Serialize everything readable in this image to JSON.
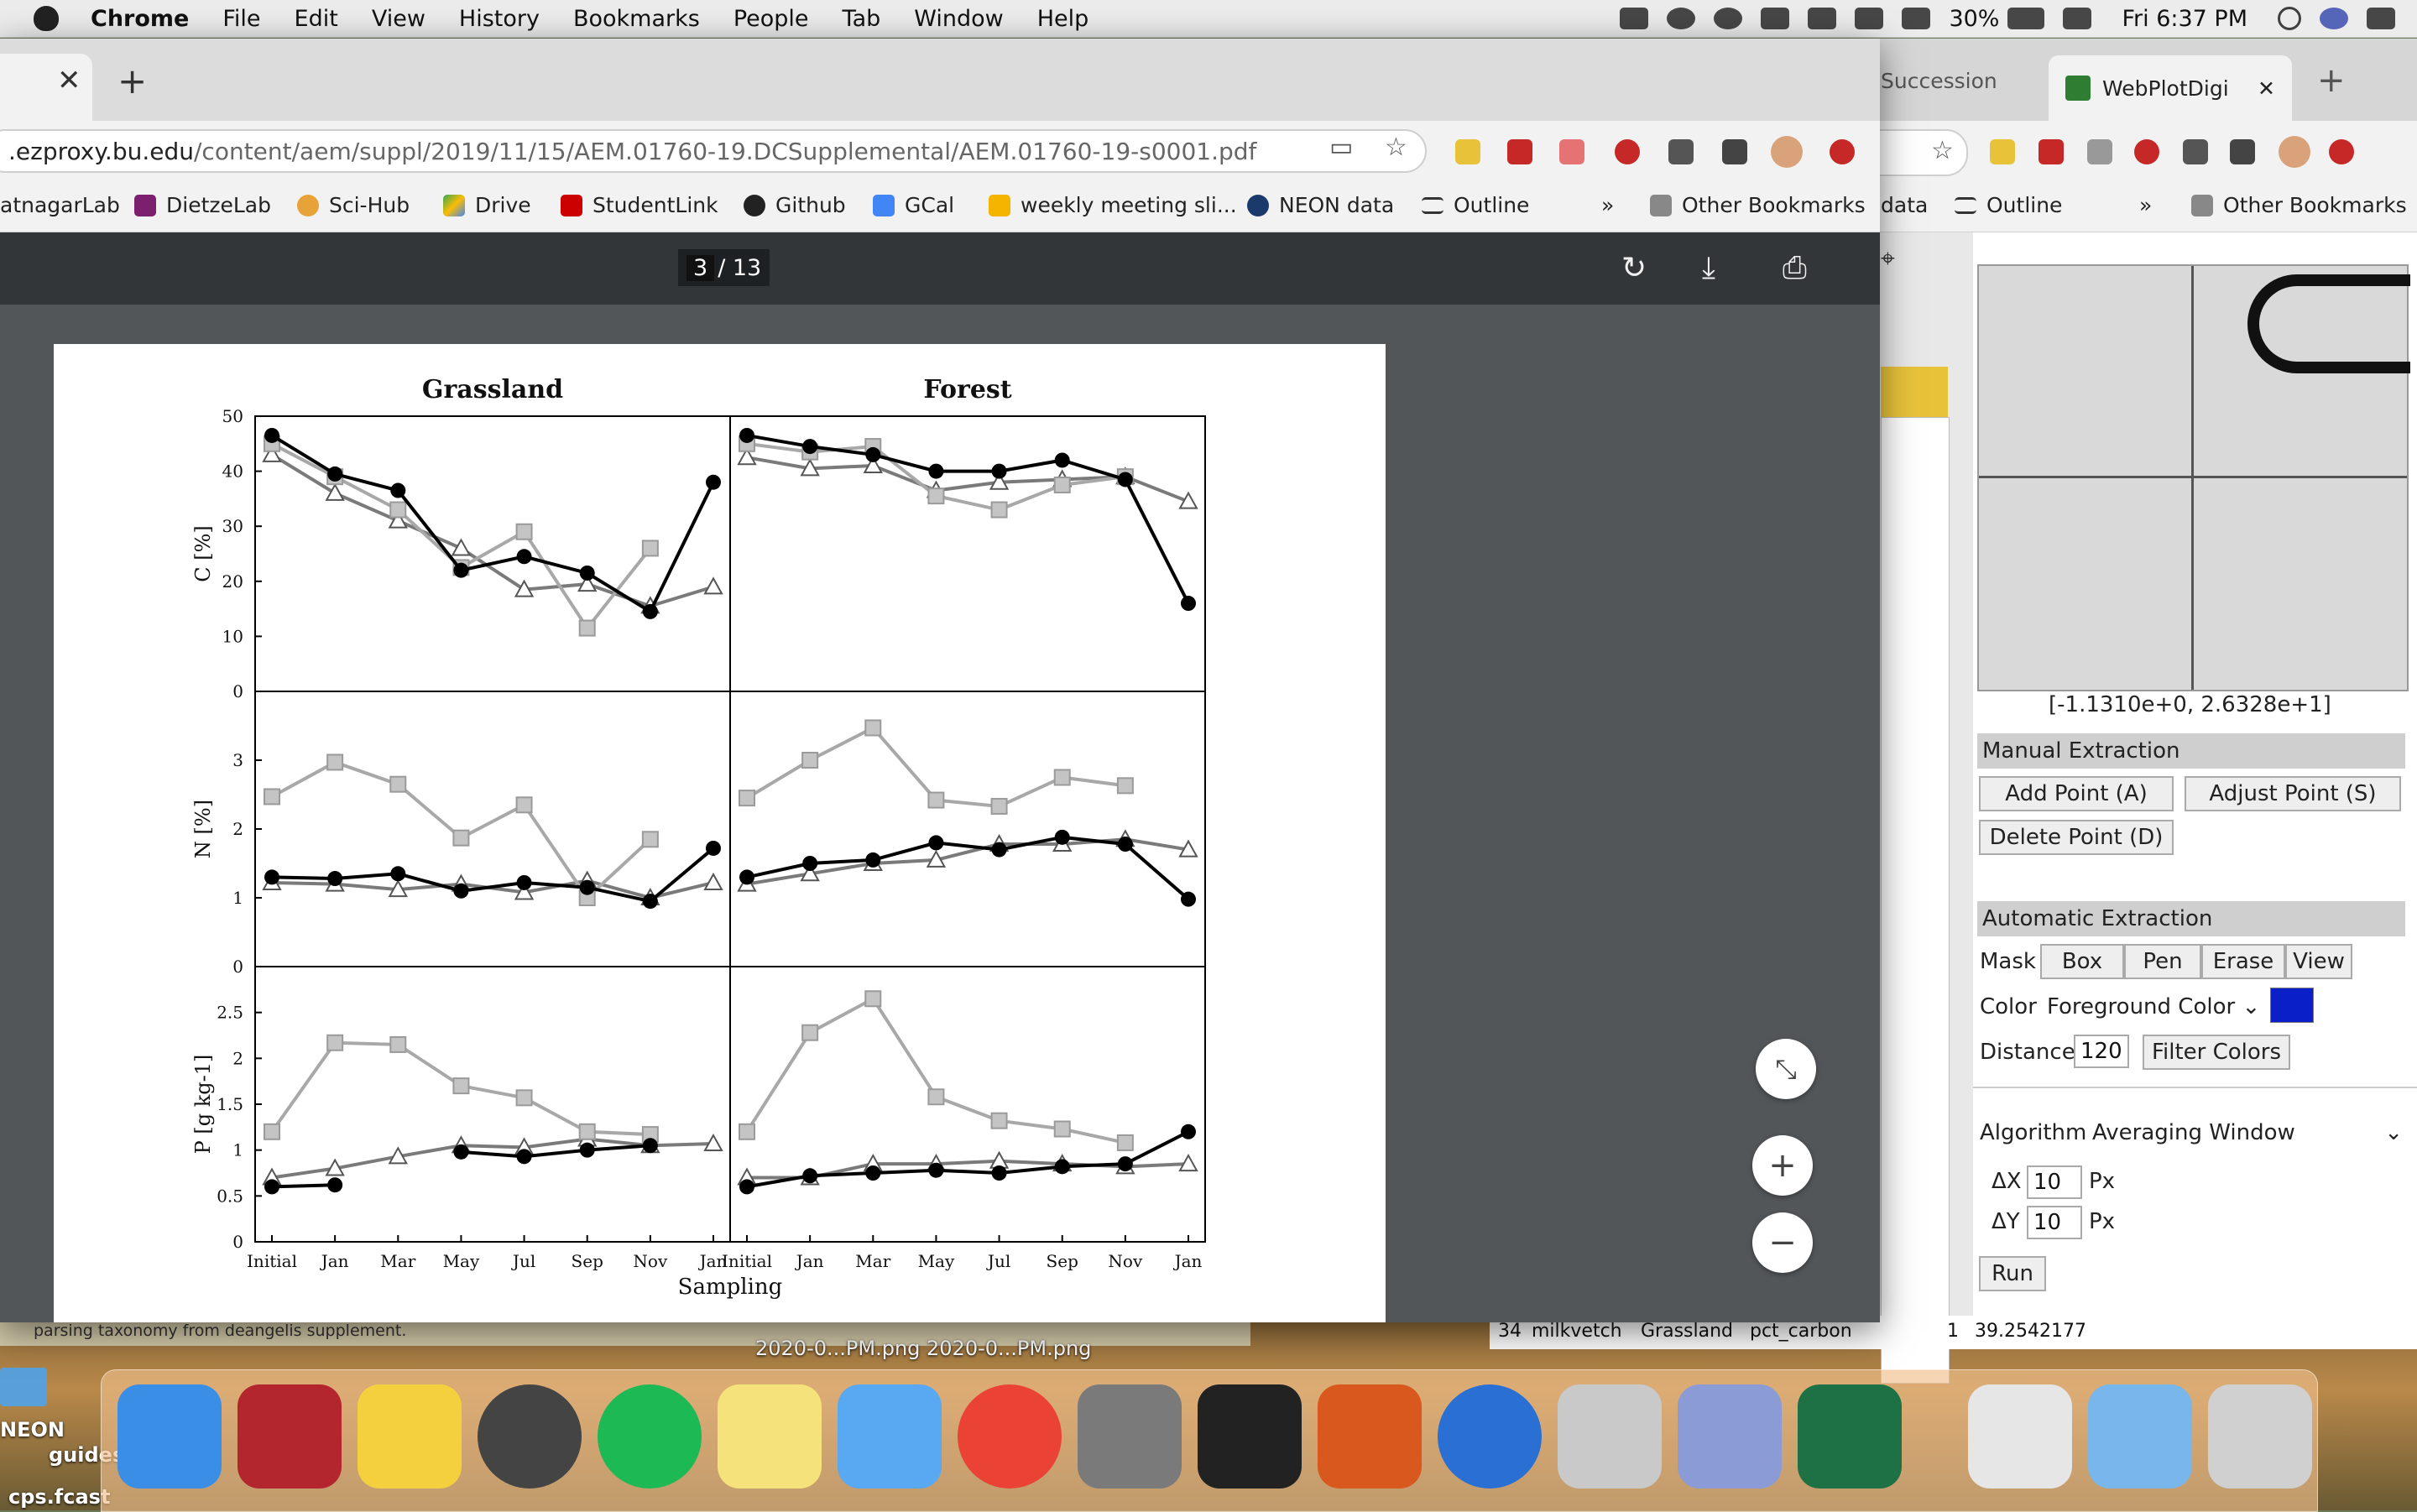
{
  "menubar": {
    "app": "Chrome",
    "items": [
      "File",
      "Edit",
      "View",
      "History",
      "Bookmarks",
      "People",
      "Tab",
      "Window",
      "Help"
    ],
    "battery": "30%",
    "clock": "Fri 6:37 PM"
  },
  "chrome": {
    "url_host": ".ezproxy.bu.edu",
    "url_path": "/content/aem/suppl/2019/11/15/AEM.01760-19.DCSupplemental/AEM.01760-19-s0001.pdf",
    "bookmarks": [
      "atnagarLab",
      "DietzeLab",
      "Sci-Hub",
      "Drive",
      "StudentLink",
      "Github",
      "GCal",
      "weekly meeting sli...",
      "NEON data",
      "Outline",
      "»",
      "Other Bookmarks"
    ],
    "pdf_page": "3",
    "pdf_pages_total": "/ 13"
  },
  "wpd": {
    "tab_left": "Succession",
    "tab_title": "WebPlotDigi",
    "bookmarks": [
      "data",
      "Outline",
      "»",
      "Other Bookmarks"
    ],
    "coords": "[-1.1310e+0, 2.6328e+1]",
    "manual_extraction": "Manual Extraction",
    "add_point": "Add Point (A)",
    "adjust_point": "Adjust Point (S)",
    "delete_point": "Delete Point (D)",
    "automatic_extraction": "Automatic Extraction",
    "mask_label": "Mask",
    "mask_box": "Box",
    "mask_pen": "Pen",
    "mask_erase": "Erase",
    "mask_view": "View",
    "color_label": "Color",
    "color_select": "Foreground Color",
    "distance_label": "Distance",
    "distance_value": "120",
    "filter_colors": "Filter Colors",
    "algorithm_label": "Algorithm",
    "algorithm_value": "Averaging Window",
    "dx_label": "ΔX",
    "dx_value": "10",
    "dy_label": "ΔY",
    "dy_value": "10",
    "px": "Px",
    "run": "Run",
    "accent": "#0a1fc8"
  },
  "sheet": {
    "row_num": "34",
    "species": "milkvetch",
    "habitat": "Grassland",
    "var": "pct_carbon",
    "n": "1",
    "value": "39.2542177"
  },
  "desktop": {
    "note": "parsing taxonomy from deangelis supplement.",
    "files": "2020-0...PM.png   2020-0...PM.png",
    "label1": "NEON",
    "label2": "guides",
    "label3": "cps.fcast"
  },
  "chart_data": {
    "type": "line",
    "x_categories": [
      "Initial",
      "Jan",
      "Mar",
      "May",
      "Jul",
      "Sep",
      "Nov",
      "Jan"
    ],
    "xlabel": "Sampling",
    "columns": [
      "Grassland",
      "Forest"
    ],
    "rows": [
      {
        "ylabel": "C [%]",
        "ylim": [
          0,
          50
        ],
        "yticks": [
          0,
          10,
          20,
          30,
          40,
          50
        ]
      },
      {
        "ylabel": "N [%]",
        "ylim": [
          0,
          4
        ],
        "yticks": [
          0,
          1,
          2,
          3
        ]
      },
      {
        "ylabel": "P [g kg-1]",
        "ylim": [
          0,
          3
        ],
        "yticks": [
          0,
          0.5,
          1,
          1.5,
          2,
          2.5
        ]
      }
    ],
    "panels": {
      "Grassland": {
        "C": {
          "circle": [
            46.5,
            39.5,
            36.5,
            22,
            24.5,
            21.5,
            14.5,
            38
          ],
          "square": [
            45,
            39,
            33,
            22.5,
            29,
            11.5,
            26,
            null
          ],
          "triangle": [
            43,
            36,
            31,
            26,
            18.5,
            19.5,
            15.5,
            19
          ]
        },
        "N": {
          "circle": [
            1.3,
            1.28,
            1.35,
            1.1,
            1.22,
            1.15,
            0.95,
            1.72
          ],
          "square": [
            2.47,
            2.97,
            2.65,
            1.87,
            2.35,
            1.0,
            1.85,
            null
          ],
          "triangle": [
            1.22,
            1.2,
            1.12,
            1.2,
            1.08,
            1.25,
            1.0,
            1.22
          ]
        },
        "P": {
          "circle": [
            0.6,
            0.62,
            null,
            0.98,
            0.93,
            1.0,
            1.05,
            null
          ],
          "square": [
            1.2,
            2.17,
            2.15,
            1.7,
            1.57,
            1.2,
            1.17,
            null
          ],
          "triangle": [
            0.7,
            0.8,
            0.93,
            1.05,
            1.03,
            1.12,
            1.05,
            1.07
          ]
        }
      },
      "Forest": {
        "C": {
          "circle": [
            46.5,
            44.5,
            43,
            40,
            40,
            42,
            38.5,
            16
          ],
          "square": [
            45,
            43.5,
            44.5,
            35.5,
            33,
            37.5,
            39,
            null
          ],
          "triangle": [
            42.5,
            40.5,
            41,
            36.5,
            38,
            38.5,
            39,
            34.5
          ]
        },
        "N": {
          "circle": [
            1.3,
            1.5,
            1.55,
            1.8,
            1.7,
            1.88,
            1.78,
            0.98
          ],
          "square": [
            2.45,
            3.0,
            3.47,
            2.42,
            2.33,
            2.75,
            2.63,
            null
          ],
          "triangle": [
            1.2,
            1.35,
            1.5,
            1.55,
            1.78,
            1.78,
            1.85,
            1.7
          ]
        },
        "P": {
          "circle": [
            0.6,
            0.72,
            0.75,
            0.78,
            0.75,
            0.82,
            0.85,
            1.2
          ],
          "square": [
            1.2,
            2.28,
            2.65,
            1.58,
            1.32,
            1.23,
            1.08,
            null
          ],
          "triangle": [
            0.7,
            0.7,
            0.85,
            0.85,
            0.88,
            0.85,
            0.82,
            0.85
          ]
        }
      }
    },
    "series_style": {
      "circle": "#000000",
      "square": "#a8a8a8",
      "triangle": "#7a7a7a"
    }
  },
  "dock_apps": [
    "finder",
    "mendeley",
    "cyberduck",
    "solitaire",
    "spotify",
    "stickies",
    "messages",
    "chrome",
    "system-preferences",
    "terminal",
    "xquartz",
    "r",
    "preview",
    "xcode",
    "excel",
    "documents",
    "folder",
    "trash"
  ]
}
